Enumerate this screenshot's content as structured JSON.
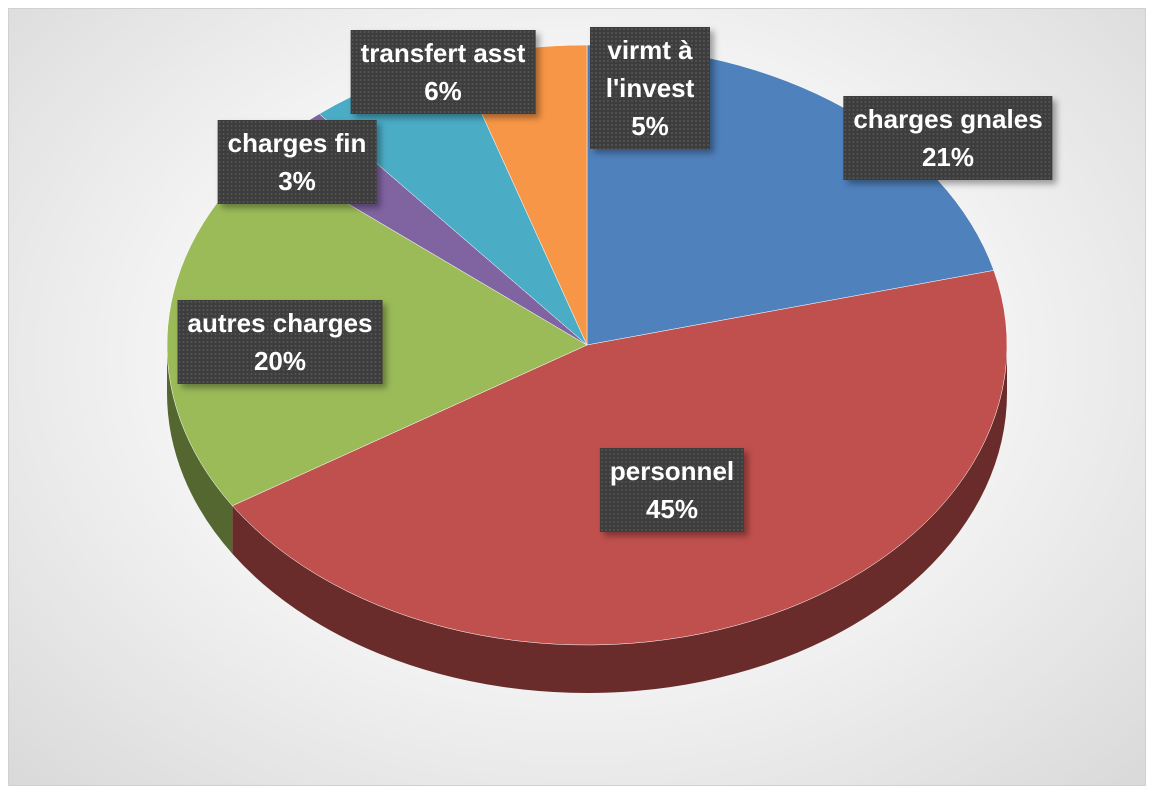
{
  "chart_data": {
    "type": "pie",
    "categories": [
      "charges gnales",
      "personnel",
      "autres charges",
      "charges fin",
      "transfert asst",
      "virmt à l'invest"
    ],
    "values": [
      21,
      45,
      20,
      3,
      6,
      5
    ],
    "value_labels": [
      "21%",
      "45%",
      "20%",
      "3%",
      "6%",
      "5%"
    ],
    "colors": [
      "#4f81bd",
      "#c0504d",
      "#9bbb59",
      "#8064a2",
      "#4bacc6",
      "#f79646"
    ]
  }
}
